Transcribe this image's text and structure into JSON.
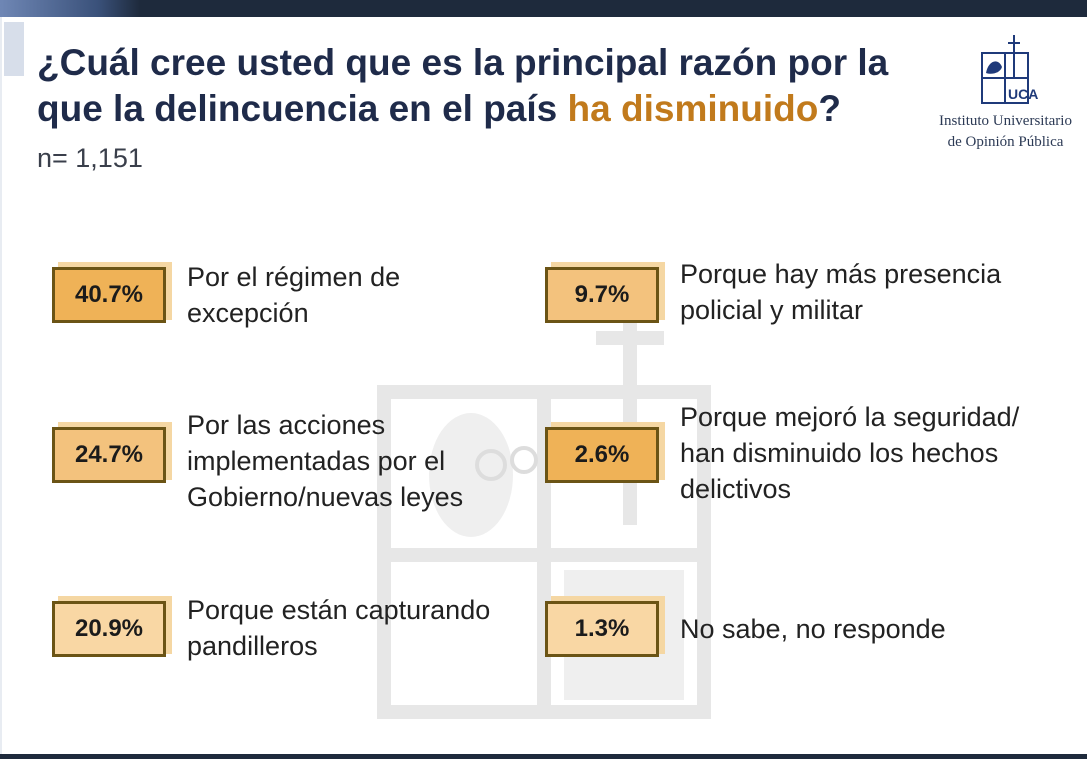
{
  "header": {
    "title_part1": "¿Cuál cree usted que es la principal razón por la que la delincuencia en el país ",
    "title_highlight": "ha disminuido",
    "title_end": "?",
    "n_label": "n= 1,151"
  },
  "logo": {
    "monogram": "UCA",
    "line1": "Instituto Universitario",
    "line2": "de Opinión Pública"
  },
  "colors": {
    "title": "#1f2b4a",
    "highlight": "#c17a1c",
    "box_fill_dark": "#efb257",
    "box_fill_light": "#f9d7a4",
    "box_border": "#6b5415",
    "top_bar": "#1e2a3c"
  },
  "results": [
    {
      "percent": "40.7%",
      "value": 40.7,
      "label_lines": [
        "Por el régimen de",
        "excepción"
      ]
    },
    {
      "percent": "24.7%",
      "value": 24.7,
      "label_lines": [
        "Por las acciones",
        "implementadas por el",
        "Gobierno/nuevas leyes"
      ]
    },
    {
      "percent": "20.9%",
      "value": 20.9,
      "label_lines": [
        "Porque están capturando",
        "pandilleros"
      ]
    },
    {
      "percent": "9.7%",
      "value": 9.7,
      "label_lines": [
        "Porque hay más presencia",
        "policial y militar"
      ]
    },
    {
      "percent": "2.6%",
      "value": 2.6,
      "label_lines": [
        "Porque mejoró la seguridad/",
        "han disminuido los hechos",
        "delictivos"
      ]
    },
    {
      "percent": "1.3%",
      "value": 1.3,
      "label_lines": [
        "No sabe, no responde"
      ]
    }
  ]
}
